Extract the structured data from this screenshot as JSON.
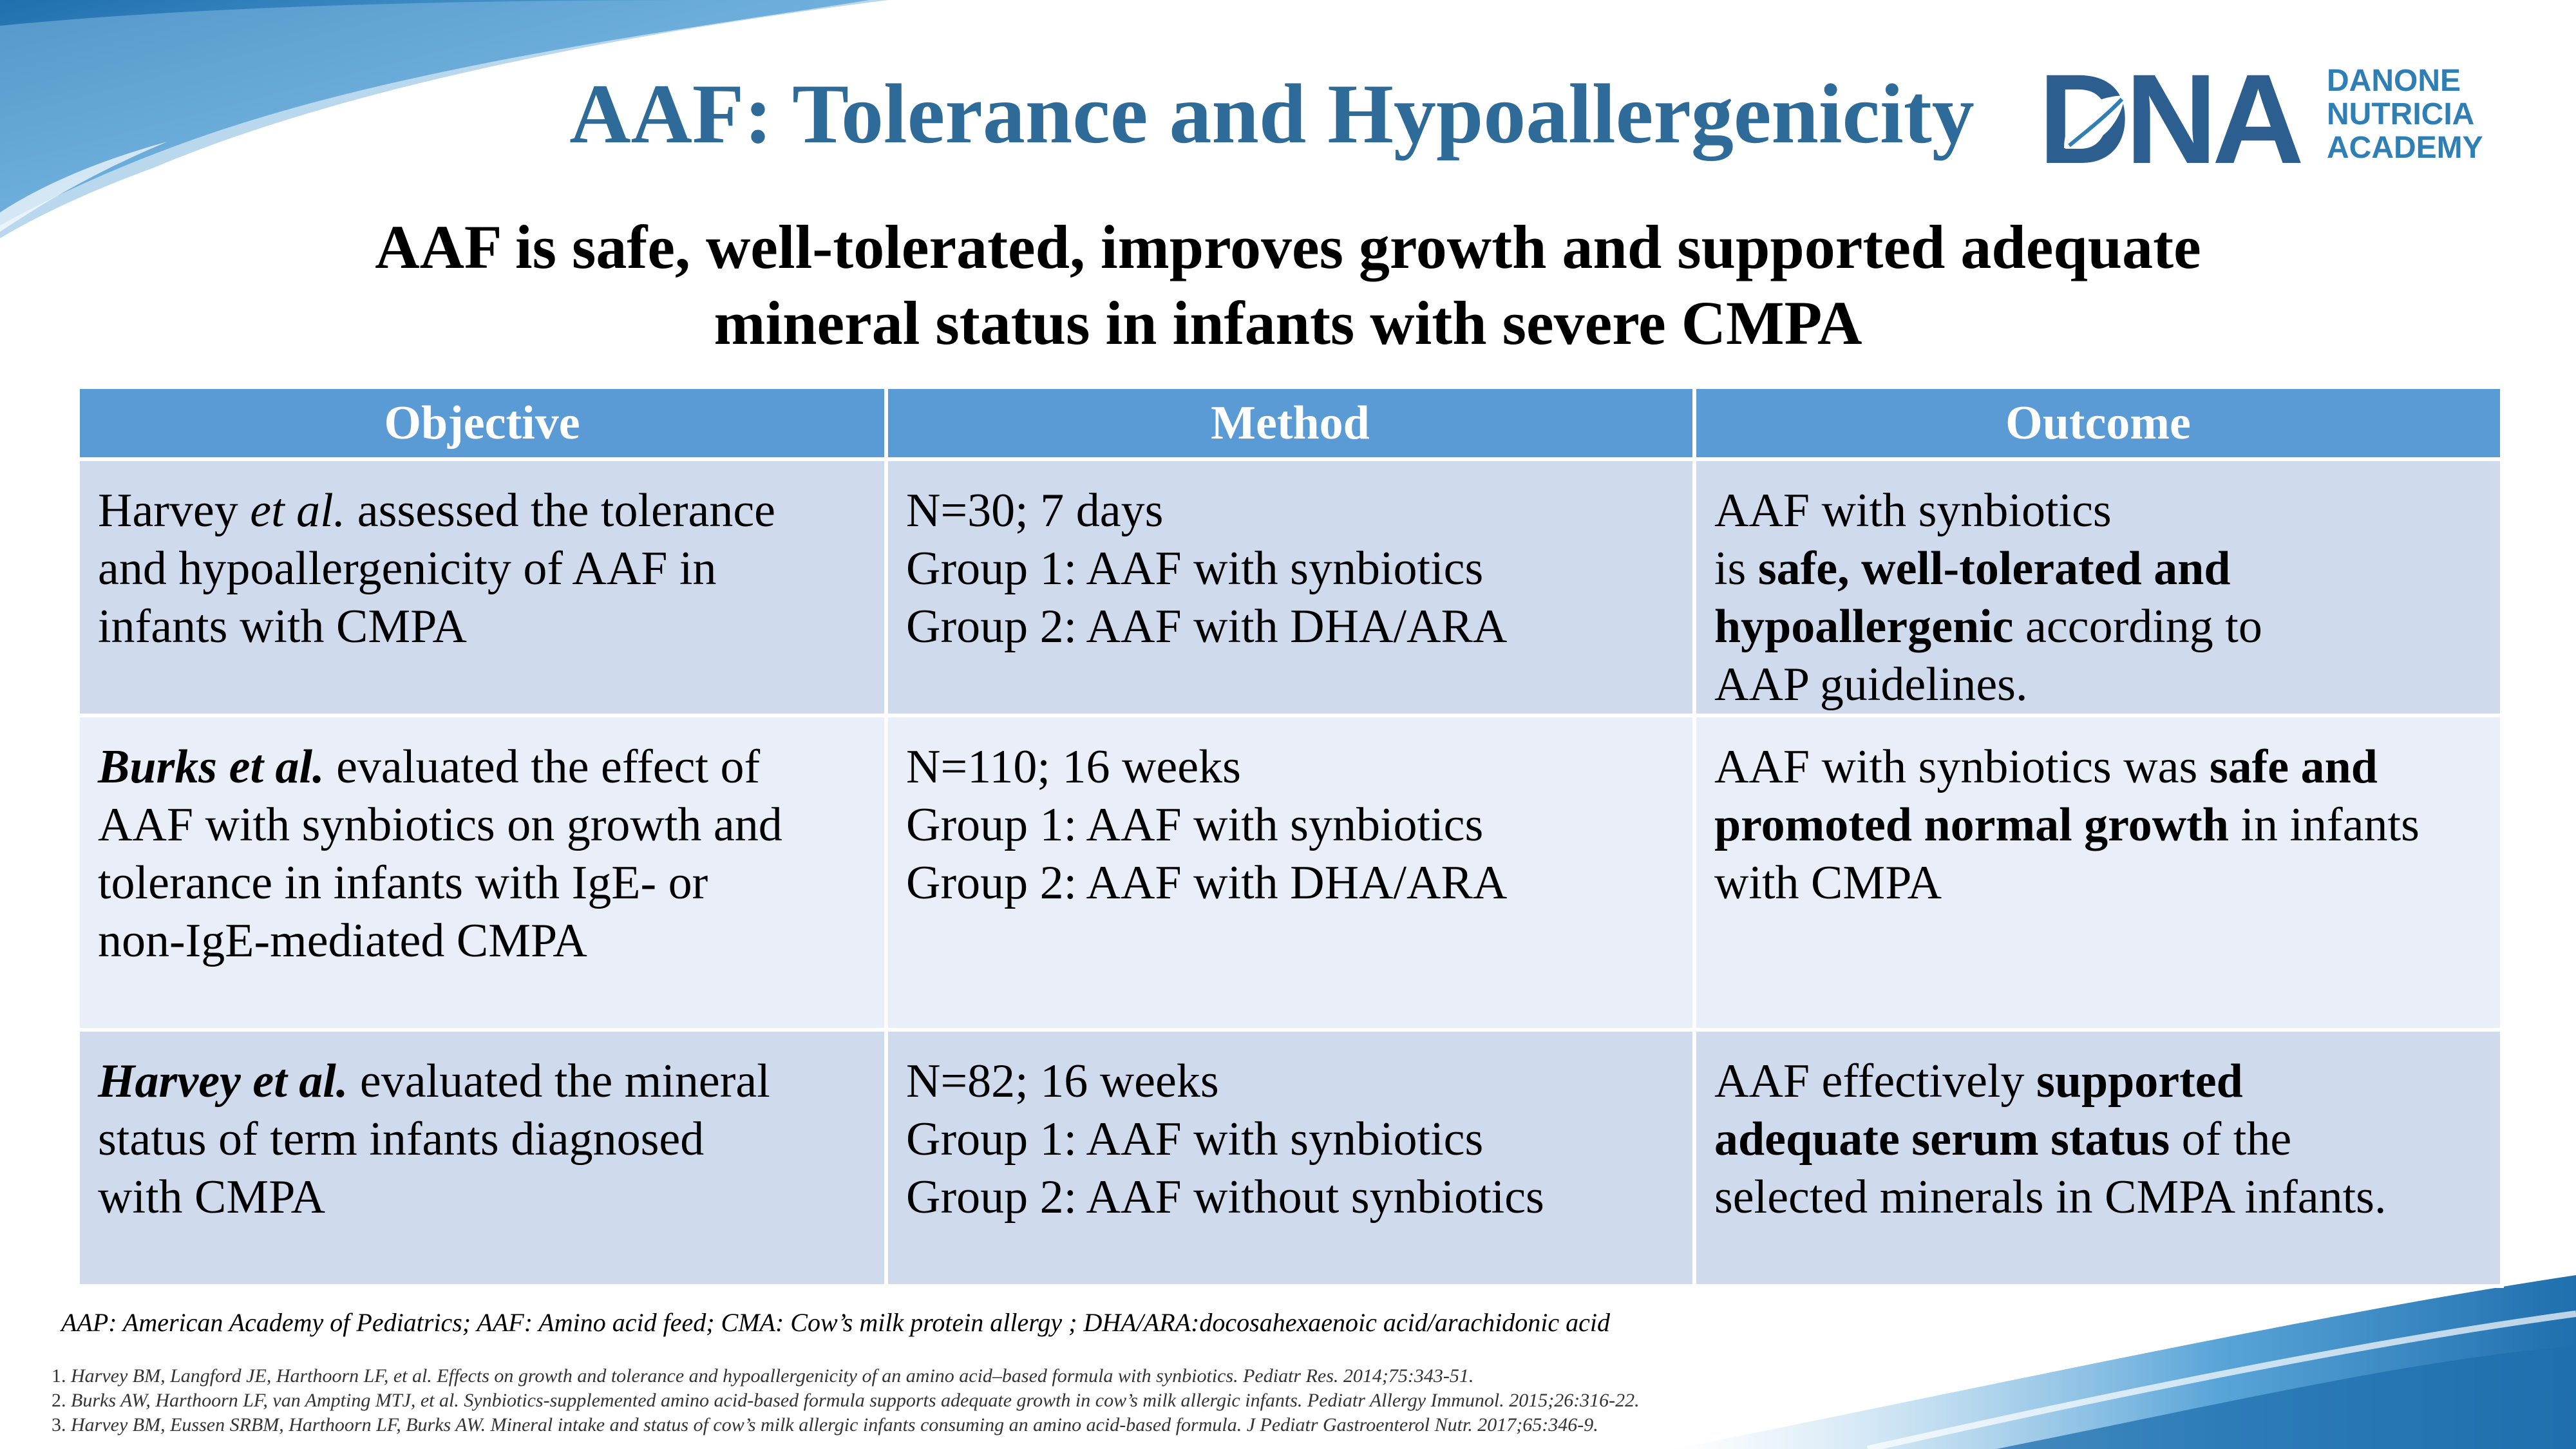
{
  "slide": {
    "title": "AAF: Tolerance and Hypoallergenicity",
    "subtitle": [
      "AAF is safe, well-tolerated, improves growth and supported adequate",
      "mineral status in infants with severe CMPA"
    ]
  },
  "logo": {
    "mark": "DNA",
    "words": [
      "DANONE",
      "NUTRICIA",
      "ACADEMY"
    ],
    "icon": "leaf-icon",
    "colors": {
      "dark": "#2c5f8f",
      "light": "#2f7fb5"
    }
  },
  "table": {
    "headers": [
      "Objective",
      "Method",
      "Outcome"
    ],
    "rows": [
      {
        "objective": [
          [
            {
              "t": "Harvey "
            },
            {
              "t": "et al.",
              "i": true
            },
            {
              "t": " assessed the tolerance"
            }
          ],
          [
            {
              "t": "and hypoallergenicity of AAF in"
            }
          ],
          [
            {
              "t": "infants with CMPA"
            }
          ]
        ],
        "method": [
          [
            {
              "t": "N=30; 7 days"
            }
          ],
          [
            {
              "t": "Group 1: AAF with synbiotics"
            }
          ],
          [
            {
              "t": "Group 2: AAF with DHA/ARA"
            }
          ]
        ],
        "outcome": [
          [
            {
              "t": "AAF with synbiotics"
            }
          ],
          [
            {
              "t": "is "
            },
            {
              "t": "safe, well-tolerated and",
              "b": true
            }
          ],
          [
            {
              "t": "hypoallergenic",
              "b": true
            },
            {
              "t": " according to"
            }
          ],
          [
            {
              "t": "AAP guidelines."
            }
          ]
        ]
      },
      {
        "objective": [
          [
            {
              "t": "Burks et al.",
              "b": true,
              "i": true
            },
            {
              "t": " evaluated the effect of"
            }
          ],
          [
            {
              "t": "AAF with synbiotics on growth and"
            }
          ],
          [
            {
              "t": "tolerance in infants with IgE- or"
            }
          ],
          [
            {
              "t": "non-IgE-mediated CMPA"
            }
          ]
        ],
        "method": [
          [
            {
              "t": "N=110; 16 weeks"
            }
          ],
          [
            {
              "t": "Group 1: AAF with synbiotics"
            }
          ],
          [
            {
              "t": "Group 2: AAF with DHA/ARA"
            }
          ]
        ],
        "outcome": [
          [
            {
              "t": "AAF with synbiotics was "
            },
            {
              "t": "safe and",
              "b": true
            }
          ],
          [
            {
              "t": "promoted normal growth",
              "b": true
            },
            {
              "t": " in infants"
            }
          ],
          [
            {
              "t": "with CMPA"
            }
          ]
        ]
      },
      {
        "objective": [
          [
            {
              "t": "Harvey et al.",
              "b": true,
              "i": true
            },
            {
              "t": " evaluated the mineral"
            }
          ],
          [
            {
              "t": "status of term infants diagnosed"
            }
          ],
          [
            {
              "t": "with CMPA"
            }
          ]
        ],
        "method": [
          [
            {
              "t": "N=82; 16 weeks"
            }
          ],
          [
            {
              "t": "Group 1: AAF with synbiotics"
            }
          ],
          [
            {
              "t": "Group 2: AAF without synbiotics"
            }
          ]
        ],
        "outcome": [
          [
            {
              "t": "AAF effectively "
            },
            {
              "t": "supported",
              "b": true
            }
          ],
          [
            {
              "t": "adequate serum status",
              "b": true
            },
            {
              "t": " of the"
            }
          ],
          [
            {
              "t": "selected minerals in CMPA infants."
            }
          ]
        ]
      }
    ]
  },
  "footnote": {
    "abbreviations": "AAP: American Academy of Pediatrics; AAF: Amino acid feed; CMA: Cow’s milk protein allergy ; DHA/ARA:docosahexaenoic acid/arachidonic acid",
    "references": [
      {
        "num": "1.",
        "text": "Harvey BM, Langford JE, Harthoorn LF, et al. Effects on growth and tolerance and hypoallergenicity of an amino acid–based formula with synbiotics. Pediatr Res. 2014;75:343-51."
      },
      {
        "num": "2.",
        "text": "Burks AW, Harthoorn LF, van Ampting MTJ, et al. Synbiotics-supplemented amino acid-based formula supports adequate growth in cow’s milk allergic infants. Pediatr Allergy Immunol. 2015;26:316-22."
      },
      {
        "num": "3.",
        "text": "Harvey BM, Eussen SRBM, Harthoorn LF, Burks AW. Mineral intake and status of cow’s milk allergic infants consuming an amino acid-based formula. J Pediatr Gastroenterol Nutr. 2017;65:346-9."
      }
    ]
  },
  "theme": {
    "title": "#2f6b99",
    "header_bg": "#5b9bd5",
    "row_dark": "#cfdaed",
    "row_light": "#e9eef8"
  }
}
